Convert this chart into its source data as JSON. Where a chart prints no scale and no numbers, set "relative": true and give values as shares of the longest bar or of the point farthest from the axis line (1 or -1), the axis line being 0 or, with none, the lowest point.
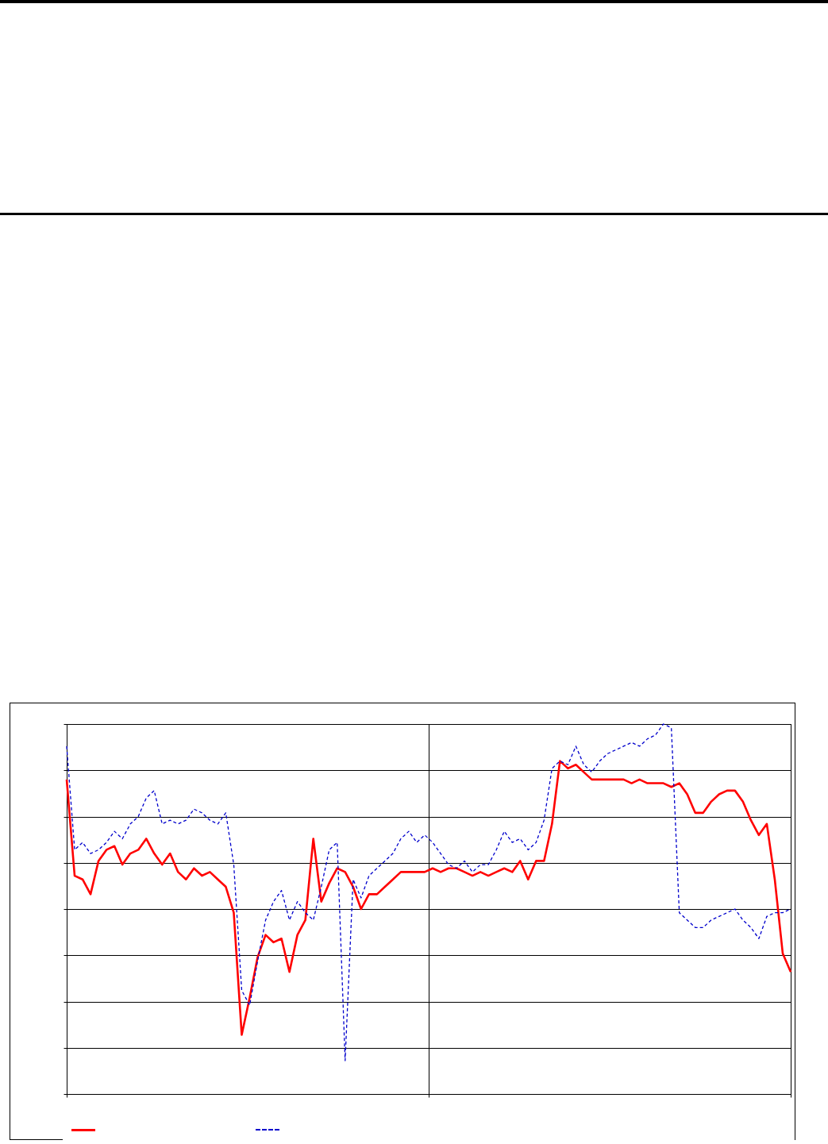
{
  "chart_data": {
    "type": "line",
    "relative": true,
    "grid": true,
    "tick_labels": false,
    "categories": [
      null,
      null,
      null,
      null,
      null,
      null,
      null,
      null,
      null,
      null,
      null,
      null,
      null,
      null,
      null,
      null,
      null,
      null,
      null,
      null,
      null,
      null,
      null,
      null,
      null,
      null,
      null,
      null,
      null,
      null,
      null,
      null,
      null,
      null,
      null,
      null,
      null,
      null,
      null,
      null,
      null,
      null,
      null,
      null,
      null,
      null,
      null,
      null,
      null,
      null,
      null,
      null,
      null,
      null,
      null,
      null,
      null,
      null,
      null,
      null,
      null,
      null,
      null,
      null,
      null,
      null,
      null,
      null,
      null,
      null,
      null,
      null,
      null,
      null,
      null,
      null,
      null,
      null,
      null,
      null,
      null,
      null,
      null,
      null,
      null,
      null,
      null,
      null,
      null,
      null,
      null,
      null
    ],
    "series": [
      {
        "color": "#ff0000",
        "line_style": "solid",
        "values": [
          0.85,
          0.59,
          0.58,
          0.54,
          0.63,
          0.66,
          0.67,
          0.62,
          0.65,
          0.66,
          0.69,
          0.65,
          0.62,
          0.65,
          0.6,
          0.58,
          0.61,
          0.59,
          0.6,
          0.58,
          0.56,
          0.49,
          0.16,
          0.26,
          0.37,
          0.43,
          0.41,
          0.42,
          0.33,
          0.43,
          0.47,
          0.69,
          0.52,
          0.57,
          0.61,
          0.6,
          0.56,
          0.5,
          0.54,
          0.54,
          0.56,
          0.58,
          0.6,
          0.6,
          0.6,
          0.6,
          0.61,
          0.6,
          0.61,
          0.61,
          0.6,
          0.59,
          0.6,
          0.59,
          0.6,
          0.61,
          0.6,
          0.63,
          0.58,
          0.63,
          0.63,
          0.73,
          0.9,
          0.88,
          0.89,
          0.87,
          0.85,
          0.85,
          0.85,
          0.85,
          0.85,
          0.84,
          0.85,
          0.84,
          0.84,
          0.84,
          0.83,
          0.84,
          0.81,
          0.76,
          0.76,
          0.79,
          0.81,
          0.82,
          0.82,
          0.79,
          0.74,
          0.7,
          0.73,
          0.58,
          0.38,
          0.33
        ]
      },
      {
        "color": "#0000cc",
        "line_style": "dashed",
        "values": [
          0.94,
          0.66,
          0.68,
          0.65,
          0.66,
          0.68,
          0.71,
          0.69,
          0.73,
          0.75,
          0.8,
          0.82,
          0.73,
          0.74,
          0.73,
          0.74,
          0.77,
          0.76,
          0.74,
          0.73,
          0.76,
          0.62,
          0.28,
          0.24,
          0.36,
          0.47,
          0.52,
          0.55,
          0.47,
          0.52,
          0.49,
          0.47,
          0.56,
          0.66,
          0.68,
          0.09,
          0.58,
          0.53,
          0.59,
          0.61,
          0.63,
          0.65,
          0.69,
          0.71,
          0.68,
          0.7,
          0.68,
          0.65,
          0.62,
          0.61,
          0.63,
          0.6,
          0.62,
          0.62,
          0.66,
          0.71,
          0.68,
          0.69,
          0.66,
          0.68,
          0.74,
          0.88,
          0.9,
          0.89,
          0.94,
          0.89,
          0.87,
          0.9,
          0.92,
          0.93,
          0.94,
          0.95,
          0.94,
          0.96,
          0.97,
          1,
          0.99,
          0.49,
          0.47,
          0.45,
          0.45,
          0.47,
          0.48,
          0.49,
          0.5,
          0.47,
          0.45,
          0.42,
          0.48,
          0.49,
          0.49,
          0.5
        ]
      }
    ]
  }
}
